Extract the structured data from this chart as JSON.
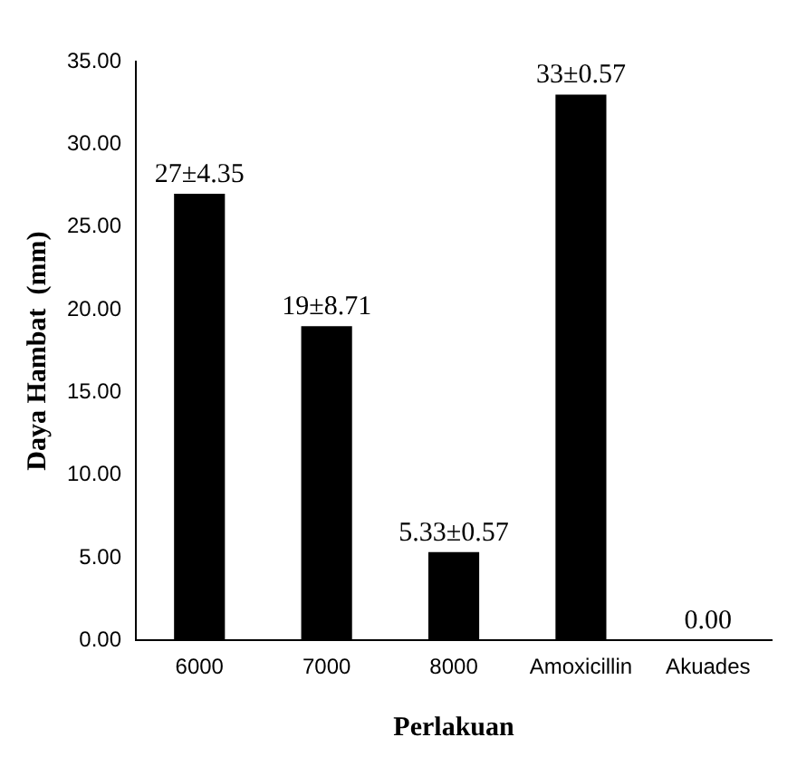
{
  "chart_data": {
    "type": "bar",
    "xlabel": "Perlakuan",
    "ylabel": "Daya Hambat  (mm)",
    "categories": [
      "6000",
      "7000",
      "8000",
      "Amoxicillin",
      "Akuades"
    ],
    "values": [
      27,
      19,
      5.33,
      33,
      0
    ],
    "value_labels": [
      "27±4.35",
      "19±8.71",
      "5.33±0.57",
      "33±0.57",
      "0.00"
    ],
    "color": "#000000",
    "ylim": [
      0,
      35
    ],
    "yticks": [
      {
        "value": 0,
        "label": "0.00"
      },
      {
        "value": 5,
        "label": "5.00"
      },
      {
        "value": 10,
        "label": "10.00"
      },
      {
        "value": 15,
        "label": "15.00"
      },
      {
        "value": 20,
        "label": "20.00"
      },
      {
        "value": 25,
        "label": "25.00"
      },
      {
        "value": 30,
        "label": "30.00"
      },
      {
        "value": 35,
        "label": "35.00"
      }
    ],
    "grid": false,
    "legend": false
  }
}
